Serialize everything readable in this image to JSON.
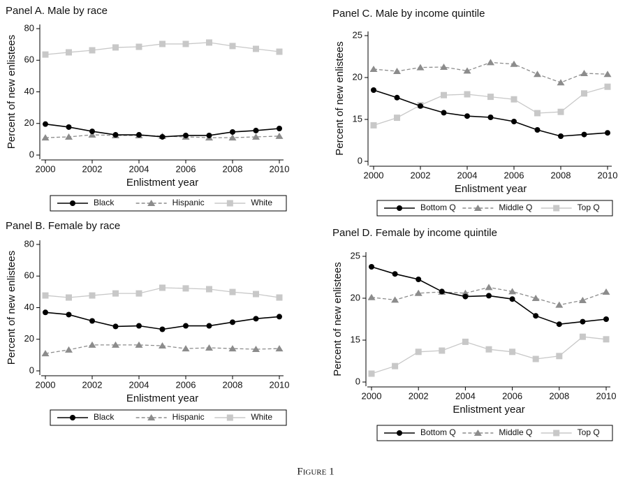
{
  "chart_data": [
    {
      "type": "line",
      "title": "Panel A. Male by race",
      "xlabel": "Enlistment year",
      "ylabel": "Percent of new enlistees",
      "x": [
        2000,
        2001,
        2002,
        2003,
        2004,
        2005,
        2006,
        2007,
        2008,
        2009,
        2010
      ],
      "xlim": [
        2000,
        2010
      ],
      "xticks": [
        2000,
        2002,
        2004,
        2006,
        2008,
        2010
      ],
      "ylim": [
        0,
        80
      ],
      "yticks": [
        0,
        20,
        40,
        60,
        80
      ],
      "series": [
        {
          "name": "Black",
          "color": "#000000",
          "marker": "circle",
          "values": [
            19.6,
            17.7,
            15,
            12.8,
            12.8,
            11.5,
            12.4,
            12.4,
            14.6,
            15.5,
            16.8
          ]
        },
        {
          "name": "Hispanic",
          "color": "#8c8c8c",
          "marker": "triangle",
          "values": [
            11,
            11.5,
            12.8,
            12.4,
            12.4,
            12,
            11.5,
            11,
            11,
            11.5,
            12
          ]
        },
        {
          "name": "White",
          "color": "#c8c8c8",
          "marker": "square",
          "values": [
            63.6,
            65,
            66.3,
            68.1,
            68.5,
            70.3,
            70.3,
            71.2,
            69,
            67.2,
            65.4
          ]
        }
      ]
    },
    {
      "type": "line",
      "title": "Panel B. Female by race",
      "xlabel": "Enlistment year",
      "ylabel": "Percent of new enlistees",
      "x": [
        2000,
        2001,
        2002,
        2003,
        2004,
        2005,
        2006,
        2007,
        2008,
        2009,
        2010
      ],
      "xlim": [
        2000,
        2010
      ],
      "xticks": [
        2000,
        2002,
        2004,
        2006,
        2008,
        2010
      ],
      "ylim": [
        0,
        80
      ],
      "yticks": [
        0,
        20,
        40,
        60,
        80
      ],
      "series": [
        {
          "name": "Black",
          "color": "#000000",
          "marker": "circle",
          "values": [
            37,
            35.6,
            31.6,
            28.1,
            28.5,
            26.3,
            28.5,
            28.5,
            30.8,
            33,
            34.3
          ]
        },
        {
          "name": "Hispanic",
          "color": "#8c8c8c",
          "marker": "triangle",
          "values": [
            11,
            13.3,
            16.4,
            16.4,
            16.4,
            15.9,
            14.1,
            14.6,
            14.1,
            13.7,
            14.1
          ]
        },
        {
          "name": "White",
          "color": "#c8c8c8",
          "marker": "square",
          "values": [
            47.7,
            46.4,
            47.7,
            49,
            49,
            52.6,
            52.2,
            51.7,
            49.9,
            48.6,
            46.4
          ]
        }
      ]
    },
    {
      "type": "line",
      "title": "Panel C. Male by income quintile",
      "xlabel": "Enlistment year",
      "ylabel": "Percent of new enlistees",
      "x": [
        2000,
        2001,
        2002,
        2003,
        2004,
        2005,
        2006,
        2007,
        2008,
        2009,
        2010
      ],
      "xlim": [
        2000,
        2010
      ],
      "xticks": [
        2000,
        2002,
        2004,
        2006,
        2008,
        2010
      ],
      "ylim": [
        10,
        25
      ],
      "yticks": [
        {
          "value": 10,
          "label": "0"
        },
        15,
        20,
        25
      ],
      "series": [
        {
          "name": "Bottom Q",
          "color": "#000000",
          "marker": "circle",
          "values": [
            18.5,
            17.6,
            16.6,
            15.8,
            15.4,
            15.25,
            14.75,
            13.75,
            13,
            13.2,
            13.4
          ]
        },
        {
          "name": "Middle Q",
          "color": "#8c8c8c",
          "marker": "triangle",
          "values": [
            21,
            20.75,
            21.2,
            21.25,
            20.8,
            21.8,
            21.6,
            20.4,
            19.4,
            20.5,
            20.4
          ]
        },
        {
          "name": "Top Q",
          "color": "#c8c8c8",
          "marker": "square",
          "values": [
            14.3,
            15.2,
            16.7,
            17.9,
            18,
            17.7,
            17.4,
            15.75,
            15.9,
            18.1,
            18.9
          ]
        }
      ]
    },
    {
      "type": "line",
      "title": "Panel D. Female by income quintile",
      "xlabel": "Enlistment year",
      "ylabel": "Percent of new enlistees",
      "x": [
        2000,
        2001,
        2002,
        2003,
        2004,
        2005,
        2006,
        2007,
        2008,
        2009,
        2010
      ],
      "xlim": [
        2000,
        2010
      ],
      "xticks": [
        2000,
        2002,
        2004,
        2006,
        2008,
        2010
      ],
      "ylim": [
        10,
        25
      ],
      "yticks": [
        {
          "value": 10,
          "label": "0"
        },
        15,
        20,
        25
      ],
      "series": [
        {
          "name": "Bottom Q",
          "color": "#000000",
          "marker": "circle",
          "values": [
            23.75,
            22.9,
            22.25,
            20.8,
            20.2,
            20.3,
            19.9,
            17.9,
            16.9,
            17.2,
            17.5
          ]
        },
        {
          "name": "Middle Q",
          "color": "#8c8c8c",
          "marker": "triangle",
          "values": [
            20.1,
            19.8,
            20.6,
            20.75,
            20.6,
            21.3,
            20.8,
            20,
            19.2,
            19.75,
            20.75
          ]
        },
        {
          "name": "Top Q",
          "color": "#c8c8c8",
          "marker": "square",
          "values": [
            11,
            11.9,
            13.6,
            13.75,
            14.8,
            13.9,
            13.6,
            12.75,
            13.1,
            15.4,
            15.1
          ]
        }
      ]
    }
  ],
  "caption": "Figure 1"
}
